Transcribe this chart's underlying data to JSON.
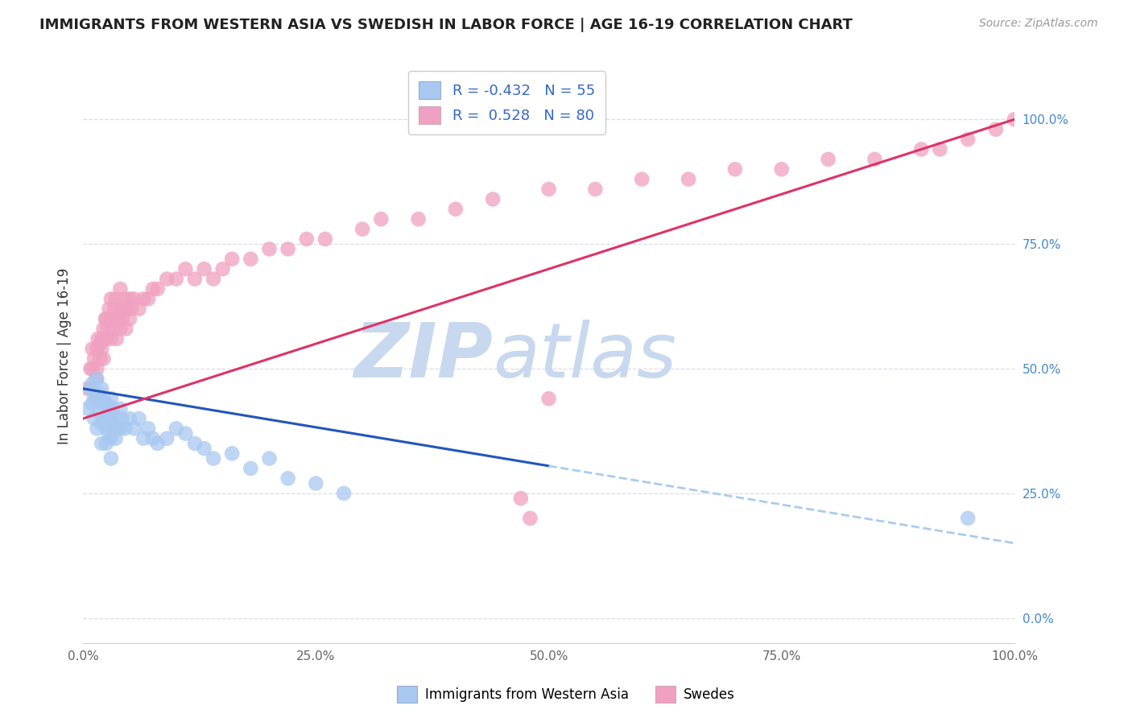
{
  "title": "IMMIGRANTS FROM WESTERN ASIA VS SWEDISH IN LABOR FORCE | AGE 16-19 CORRELATION CHART",
  "source": "Source: ZipAtlas.com",
  "ylabel": "In Labor Force | Age 16-19",
  "xlim": [
    0.0,
    1.0
  ],
  "ylim": [
    -0.05,
    1.1
  ],
  "plot_ylim": [
    0.0,
    1.0
  ],
  "right_yticks": [
    0.0,
    0.25,
    0.5,
    0.75,
    1.0
  ],
  "right_yticklabels": [
    "0.0%",
    "25.0%",
    "50.0%",
    "75.0%",
    "100.0%"
  ],
  "xtick_pos": [
    0.0,
    0.25,
    0.5,
    0.75,
    1.0
  ],
  "xtick_labels": [
    "0.0%",
    "25.0%",
    "50.0%",
    "75.0%",
    "100.0%"
  ],
  "blue_color": "#A8C8F0",
  "pink_color": "#F0A0C0",
  "blue_line_color": "#2255BB",
  "pink_line_color": "#DD3366",
  "dashed_line_color": "#AACCEE",
  "watermark_color": "#D8E8F5",
  "grid_color": "#DCDCEC",
  "blue_scatter_x": [
    0.005,
    0.008,
    0.01,
    0.01,
    0.012,
    0.012,
    0.015,
    0.015,
    0.015,
    0.018,
    0.018,
    0.02,
    0.02,
    0.02,
    0.02,
    0.022,
    0.022,
    0.025,
    0.025,
    0.025,
    0.028,
    0.028,
    0.03,
    0.03,
    0.03,
    0.03,
    0.032,
    0.032,
    0.035,
    0.035,
    0.038,
    0.04,
    0.04,
    0.042,
    0.045,
    0.05,
    0.055,
    0.06,
    0.065,
    0.07,
    0.075,
    0.08,
    0.09,
    0.1,
    0.11,
    0.12,
    0.13,
    0.14,
    0.16,
    0.18,
    0.2,
    0.22,
    0.25,
    0.28,
    0.95
  ],
  "blue_scatter_y": [
    0.42,
    0.46,
    0.43,
    0.47,
    0.44,
    0.4,
    0.48,
    0.44,
    0.38,
    0.45,
    0.41,
    0.46,
    0.43,
    0.39,
    0.35,
    0.44,
    0.4,
    0.43,
    0.38,
    0.35,
    0.41,
    0.37,
    0.44,
    0.4,
    0.36,
    0.32,
    0.42,
    0.38,
    0.4,
    0.36,
    0.38,
    0.42,
    0.38,
    0.4,
    0.38,
    0.4,
    0.38,
    0.4,
    0.36,
    0.38,
    0.36,
    0.35,
    0.36,
    0.38,
    0.37,
    0.35,
    0.34,
    0.32,
    0.33,
    0.3,
    0.32,
    0.28,
    0.27,
    0.25,
    0.2
  ],
  "pink_scatter_x": [
    0.005,
    0.008,
    0.01,
    0.01,
    0.012,
    0.014,
    0.015,
    0.015,
    0.016,
    0.018,
    0.018,
    0.02,
    0.02,
    0.022,
    0.022,
    0.024,
    0.025,
    0.025,
    0.026,
    0.028,
    0.03,
    0.03,
    0.03,
    0.032,
    0.034,
    0.035,
    0.035,
    0.036,
    0.038,
    0.04,
    0.04,
    0.04,
    0.042,
    0.044,
    0.045,
    0.046,
    0.048,
    0.05,
    0.05,
    0.052,
    0.055,
    0.06,
    0.065,
    0.07,
    0.075,
    0.08,
    0.09,
    0.1,
    0.11,
    0.12,
    0.13,
    0.14,
    0.15,
    0.16,
    0.18,
    0.2,
    0.22,
    0.24,
    0.26,
    0.3,
    0.32,
    0.36,
    0.4,
    0.44,
    0.5,
    0.55,
    0.6,
    0.65,
    0.7,
    0.75,
    0.8,
    0.85,
    0.9,
    0.92,
    0.95,
    0.98,
    1.0,
    0.5,
    0.47,
    0.48
  ],
  "pink_scatter_y": [
    0.46,
    0.5,
    0.5,
    0.54,
    0.52,
    0.48,
    0.54,
    0.5,
    0.56,
    0.52,
    0.55,
    0.54,
    0.56,
    0.58,
    0.52,
    0.6,
    0.56,
    0.6,
    0.58,
    0.62,
    0.56,
    0.6,
    0.64,
    0.58,
    0.62,
    0.6,
    0.64,
    0.56,
    0.6,
    0.58,
    0.62,
    0.66,
    0.6,
    0.62,
    0.64,
    0.58,
    0.62,
    0.6,
    0.64,
    0.62,
    0.64,
    0.62,
    0.64,
    0.64,
    0.66,
    0.66,
    0.68,
    0.68,
    0.7,
    0.68,
    0.7,
    0.68,
    0.7,
    0.72,
    0.72,
    0.74,
    0.74,
    0.76,
    0.76,
    0.78,
    0.8,
    0.8,
    0.82,
    0.84,
    0.86,
    0.86,
    0.88,
    0.88,
    0.9,
    0.9,
    0.92,
    0.92,
    0.94,
    0.94,
    0.96,
    0.98,
    1.0,
    0.44,
    0.24,
    0.2
  ],
  "blue_line_x0": 0.0,
  "blue_line_y0": 0.46,
  "blue_line_x1": 1.0,
  "blue_line_y1": 0.15,
  "pink_line_x0": 0.0,
  "pink_line_y0": 0.4,
  "pink_line_x1": 1.0,
  "pink_line_y1": 1.0
}
